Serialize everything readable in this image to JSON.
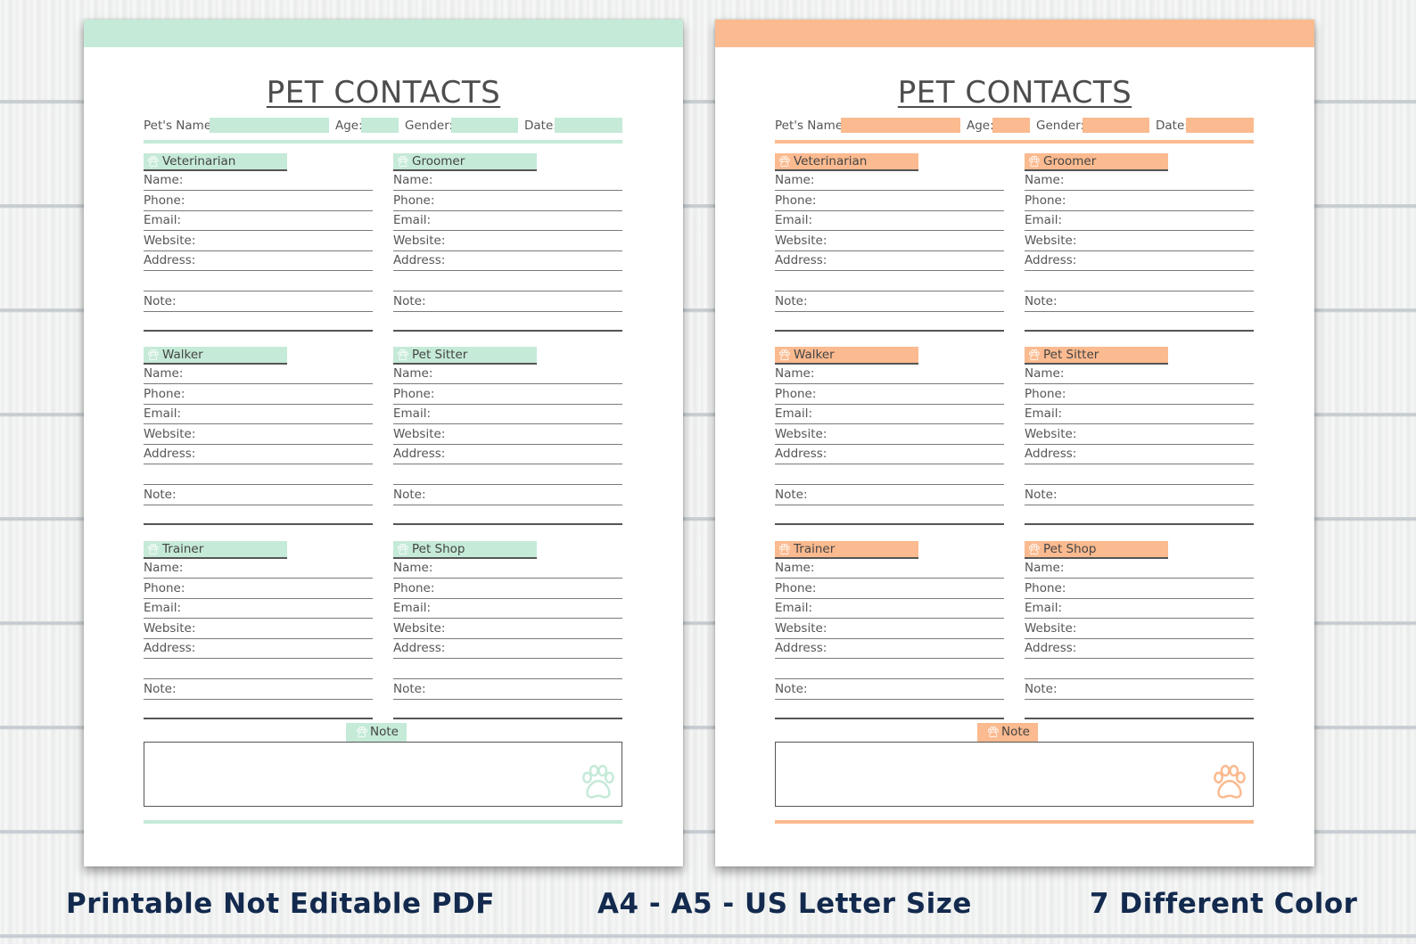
{
  "pages": [
    {
      "theme": "mint",
      "accent": "#c5ead8",
      "title": "PET CONTACTS",
      "meta": {
        "pet_name": "Pet's Name:",
        "age": "Age:",
        "gender": "Gender:",
        "date": "Date:"
      },
      "sections": [
        {
          "label": "Veterinarian",
          "fields": [
            "Name:",
            "Phone:",
            "Email:",
            "Website:",
            "Address:",
            "",
            "Note:",
            ""
          ]
        },
        {
          "label": "Groomer",
          "fields": [
            "Name:",
            "Phone:",
            "Email:",
            "Website:",
            "Address:",
            "",
            "Note:",
            ""
          ]
        },
        {
          "label": "Walker",
          "fields": [
            "Name:",
            "Phone:",
            "Email:",
            "Website:",
            "Address:",
            "",
            "Note:",
            ""
          ]
        },
        {
          "label": "Pet Sitter",
          "fields": [
            "Name:",
            "Phone:",
            "Email:",
            "Website:",
            "Address:",
            "",
            "Note:",
            ""
          ]
        },
        {
          "label": "Trainer",
          "fields": [
            "Name:",
            "Phone:",
            "Email:",
            "Website:",
            "Address:",
            "",
            "Note:",
            ""
          ]
        },
        {
          "label": "Pet Shop",
          "fields": [
            "Name:",
            "Phone:",
            "Email:",
            "Website:",
            "Address:",
            "",
            "Note:",
            ""
          ]
        }
      ],
      "note_label": "Note"
    },
    {
      "theme": "peach",
      "accent": "#fbba8f",
      "title": "PET CONTACTS",
      "meta": {
        "pet_name": "Pet's Name:",
        "age": "Age:",
        "gender": "Gender:",
        "date": "Date:"
      },
      "sections": [
        {
          "label": "Veterinarian",
          "fields": [
            "Name:",
            "Phone:",
            "Email:",
            "Website:",
            "Address:",
            "",
            "Note:",
            ""
          ]
        },
        {
          "label": "Groomer",
          "fields": [
            "Name:",
            "Phone:",
            "Email:",
            "Website:",
            "Address:",
            "",
            "Note:",
            ""
          ]
        },
        {
          "label": "Walker",
          "fields": [
            "Name:",
            "Phone:",
            "Email:",
            "Website:",
            "Address:",
            "",
            "Note:",
            ""
          ]
        },
        {
          "label": "Pet Sitter",
          "fields": [
            "Name:",
            "Phone:",
            "Email:",
            "Website:",
            "Address:",
            "",
            "Note:",
            ""
          ]
        },
        {
          "label": "Trainer",
          "fields": [
            "Name:",
            "Phone:",
            "Email:",
            "Website:",
            "Address:",
            "",
            "Note:",
            ""
          ]
        },
        {
          "label": "Pet Shop",
          "fields": [
            "Name:",
            "Phone:",
            "Email:",
            "Website:",
            "Address:",
            "",
            "Note:",
            ""
          ]
        }
      ],
      "note_label": "Note"
    }
  ],
  "captions": {
    "left": "Printable Not Editable PDF",
    "center": "A4 - A5 - US Letter Size",
    "right": "7 Different Color"
  },
  "icons": {
    "section": "paw-icon",
    "note_box": "paw-icon"
  }
}
